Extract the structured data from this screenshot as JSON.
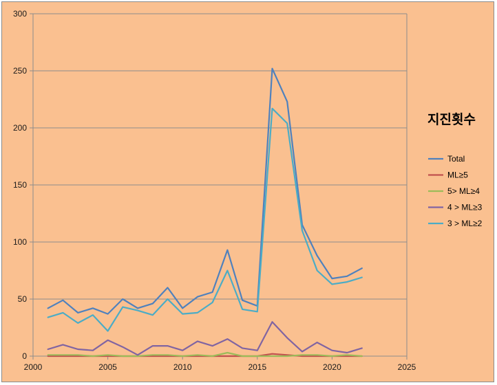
{
  "chart_data": {
    "type": "line",
    "title": "",
    "xlabel": "",
    "ylabel": "",
    "xlim": [
      2000,
      2025
    ],
    "ylim": [
      0,
      300
    ],
    "x_ticks": [
      2000,
      2005,
      2010,
      2015,
      2020,
      2025
    ],
    "y_ticks": [
      0,
      50,
      100,
      150,
      200,
      250,
      300
    ],
    "grid": "horizontal",
    "legend_title": "지진횟수",
    "legend_position": "right",
    "x": [
      2001,
      2002,
      2003,
      2004,
      2005,
      2006,
      2007,
      2008,
      2009,
      2010,
      2011,
      2012,
      2013,
      2014,
      2015,
      2016,
      2017,
      2018,
      2019,
      2020,
      2021,
      2022
    ],
    "series": [
      {
        "name": "Total",
        "color": "#4f81bd",
        "values": [
          42,
          49,
          38,
          42,
          37,
          50,
          42,
          46,
          60,
          42,
          52,
          56,
          93,
          49,
          44,
          252,
          223,
          115,
          88,
          68,
          70,
          77
        ]
      },
      {
        "name": "ML≥5",
        "color": "#c0504d",
        "values": [
          0,
          0,
          0,
          0,
          0,
          0,
          0,
          0,
          0,
          0,
          0,
          0,
          0,
          0,
          0,
          2,
          1,
          0,
          0,
          0,
          0,
          0
        ]
      },
      {
        "name": "5> ML≥4",
        "color": "#9bbb59",
        "values": [
          1,
          1,
          1,
          0,
          1,
          0,
          0,
          1,
          1,
          0,
          1,
          0,
          3,
          0,
          0,
          0,
          0,
          1,
          1,
          0,
          1,
          0
        ]
      },
      {
        "name": "4 > ML≥3",
        "color": "#8064a2",
        "values": [
          6,
          10,
          6,
          5,
          14,
          8,
          1,
          9,
          9,
          5,
          13,
          9,
          15,
          7,
          5,
          30,
          16,
          4,
          12,
          5,
          3,
          7
        ]
      },
      {
        "name": "3 > ML≥2",
        "color": "#4bacc6",
        "values": [
          34,
          38,
          29,
          36,
          22,
          43,
          40,
          36,
          50,
          37,
          38,
          47,
          75,
          41,
          39,
          217,
          204,
          110,
          75,
          63,
          65,
          69
        ]
      }
    ]
  }
}
